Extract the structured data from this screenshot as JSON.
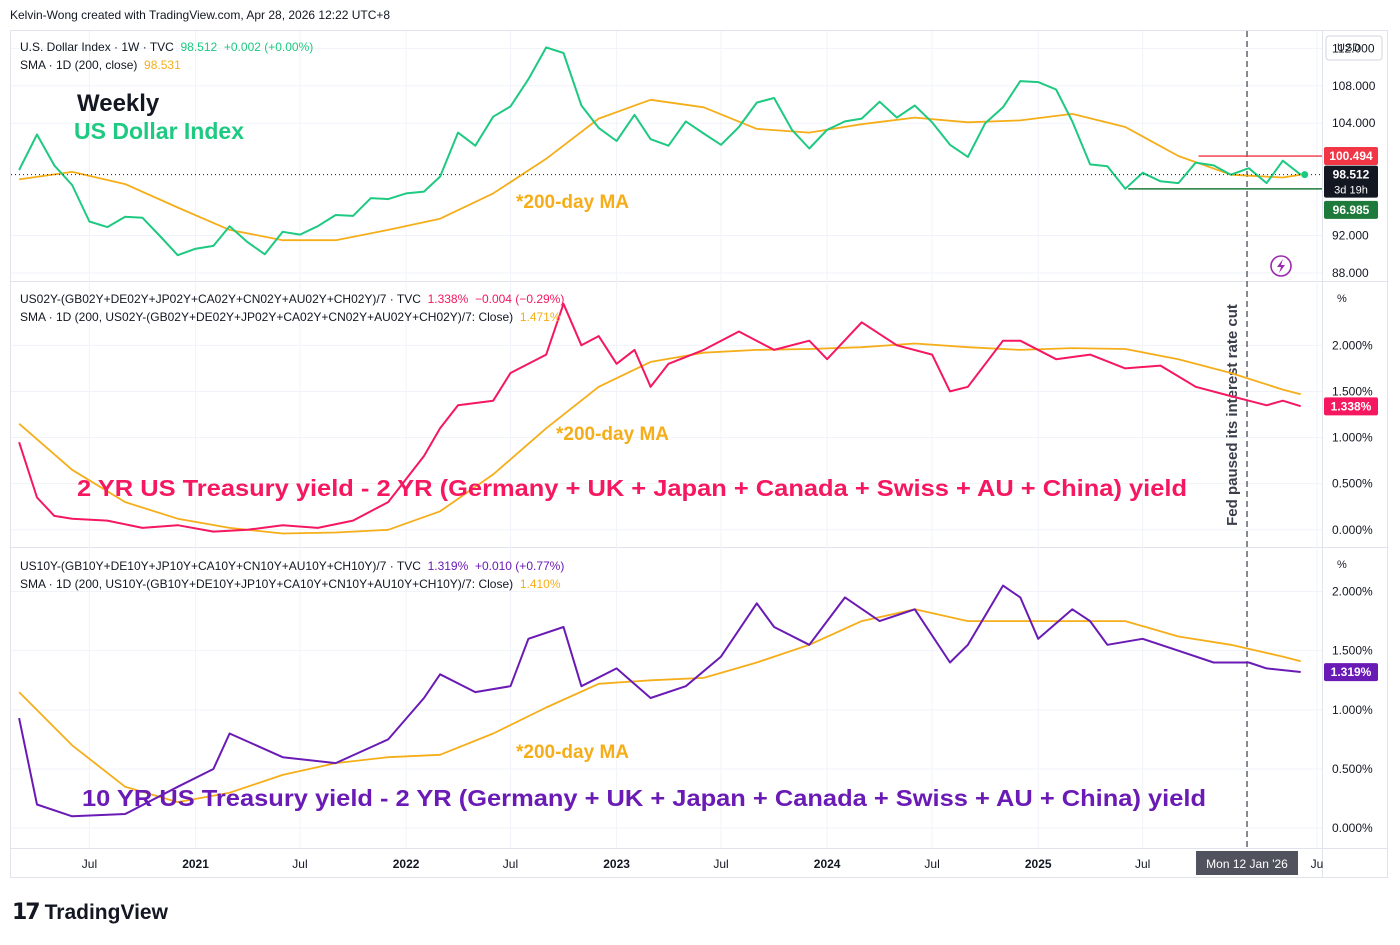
{
  "header": {
    "created_by": "Kelvin-Wong created with TradingView.com, Apr 28, 2026 12:22 UTC+8"
  },
  "footer": {
    "logo_text": "TradingView",
    "logo_mark": "17"
  },
  "colors": {
    "dxy": "#1ec981",
    "sma": "#f5ae19",
    "spread2y": "#f5175f",
    "spread10y": "#6a1ab5",
    "grid": "#f0f3fa",
    "axis_text": "#131722",
    "price_high": "#f23645",
    "price_low": "#1e7a3b"
  },
  "panels": {
    "dxy": {
      "legend_line1_name": "U.S. Dollar Index · 1W · TVC",
      "legend_line1_value": "98.512",
      "legend_line1_change": "+0.002 (+0.00%)",
      "legend_line2_name": "SMA · 1D (200, close)",
      "legend_line2_value": "98.531",
      "annotation_weekly": "Weekly",
      "annotation_title": "US Dollar Index",
      "annotation_ma": "*200-day MA",
      "axis_unit": "USD",
      "ticks": [
        "112.000",
        "108.000",
        "104.000",
        "92.000",
        "88.000"
      ],
      "badge_high": "100.494",
      "badge_last": "98.512",
      "badge_countdown": "3d 19h",
      "badge_low": "96.985"
    },
    "spread2y": {
      "legend_line1_name": "US02Y-(GB02Y+DE02Y+JP02Y+CA02Y+CN02Y+AU02Y+CH02Y)/7 · TVC",
      "legend_line1_value": "1.338%",
      "legend_line1_change": "−0.004 (−0.29%)",
      "legend_line2_name": "SMA · 1D (200, US02Y-(GB02Y+DE02Y+JP02Y+CA02Y+CN02Y+AU02Y+CH02Y)/7: Close)",
      "legend_line2_value": "1.471%",
      "annotation_title": "2 YR US Treasury yield - 2 YR (Germany + UK + Japan + Canada + Swiss + AU + China) yield",
      "annotation_ma": "*200-day MA",
      "axis_unit": "%",
      "ticks": [
        "2.000%",
        "1.500%",
        "1.000%",
        "0.500%",
        "0.000%"
      ],
      "badge_last": "1.338%"
    },
    "spread10y": {
      "legend_line1_name": "US10Y-(GB10Y+DE10Y+JP10Y+CA10Y+CN10Y+AU10Y+CH10Y)/7 · TVC",
      "legend_line1_value": "1.319%",
      "legend_line1_change": "+0.010 (+0.77%)",
      "legend_line2_name": "SMA · 1D (200, US10Y-(GB10Y+DE10Y+JP10Y+CA10Y+CN10Y+AU10Y+CH10Y)/7: Close)",
      "legend_line2_value": "1.410%",
      "annotation_title": "10 YR US Treasury yield - 2 YR (Germany + UK + Japan + Canada + Swiss + AU + China) yield",
      "annotation_ma": "*200-day MA",
      "axis_unit": "%",
      "ticks": [
        "2.000%",
        "1.500%",
        "1.000%",
        "0.500%",
        "0.000%"
      ],
      "badge_last": "1.319%"
    }
  },
  "vertical_annotation": "Fed paused its interest rate cut",
  "time_axis": {
    "labels": [
      "Jul",
      "2021",
      "Jul",
      "2022",
      "Jul",
      "2023",
      "Jul",
      "2024",
      "Jul",
      "2025",
      "Jul",
      "Ju"
    ],
    "crosshair_label": "Mon 12 Jan '26"
  },
  "chart_data": [
    {
      "type": "line",
      "title": "U.S. Dollar Index · 1W · TVC",
      "x_range": [
        "2020-04",
        "2026-04"
      ],
      "ylim": [
        88,
        113
      ],
      "series": [
        {
          "name": "U.S. Dollar Index · 1W · TVC",
          "x": [
            "2020-03",
            "2020-04",
            "2020-05",
            "2020-06",
            "2020-07",
            "2020-08",
            "2020-09",
            "2020-10",
            "2020-11",
            "2020-12",
            "2021-01",
            "2021-02",
            "2021-03",
            "2021-04",
            "2021-05",
            "2021-06",
            "2021-07",
            "2021-08",
            "2021-09",
            "2021-10",
            "2021-11",
            "2021-12",
            "2022-01",
            "2022-02",
            "2022-03",
            "2022-04",
            "2022-05",
            "2022-06",
            "2022-07",
            "2022-08",
            "2022-09",
            "2022-10",
            "2022-11",
            "2022-12",
            "2023-01",
            "2023-02",
            "2023-03",
            "2023-04",
            "2023-05",
            "2023-06",
            "2023-07",
            "2023-08",
            "2023-09",
            "2023-10",
            "2023-11",
            "2023-12",
            "2024-01",
            "2024-02",
            "2024-03",
            "2024-04",
            "2024-05",
            "2024-06",
            "2024-07",
            "2024-08",
            "2024-09",
            "2024-10",
            "2024-11",
            "2024-12",
            "2025-01",
            "2025-02",
            "2025-03",
            "2025-04",
            "2025-05",
            "2025-06",
            "2025-07",
            "2025-08",
            "2025-09",
            "2025-10",
            "2025-11",
            "2025-12",
            "2026-01",
            "2026-02",
            "2026-03",
            "2026-04"
          ],
          "y": [
            99.0,
            102.8,
            99.5,
            97.4,
            93.5,
            92.9,
            94.0,
            93.9,
            91.9,
            89.9,
            90.6,
            90.9,
            93.0,
            91.3,
            90.0,
            92.4,
            92.1,
            93.0,
            94.2,
            94.1,
            96.0,
            95.9,
            96.5,
            96.7,
            98.3,
            103.0,
            101.6,
            104.7,
            105.8,
            108.7,
            112.1,
            111.5,
            105.9,
            103.5,
            102.1,
            104.9,
            102.3,
            101.6,
            104.2,
            102.9,
            101.7,
            103.6,
            106.2,
            106.7,
            103.3,
            101.3,
            103.3,
            104.2,
            104.5,
            106.3,
            104.6,
            105.9,
            104.1,
            101.7,
            100.4,
            104.0,
            105.7,
            108.5,
            108.4,
            107.6,
            104.2,
            99.6,
            99.4,
            97.0,
            98.7,
            97.8,
            97.6,
            99.8,
            99.5,
            98.5,
            99.2,
            97.6,
            100.0,
            98.5
          ]
        },
        {
          "name": "SMA · 1D (200, close)",
          "x": [
            "2020-03",
            "2020-06",
            "2020-09",
            "2020-12",
            "2021-03",
            "2021-06",
            "2021-09",
            "2021-12",
            "2022-03",
            "2022-06",
            "2022-09",
            "2022-12",
            "2023-03",
            "2023-06",
            "2023-09",
            "2023-12",
            "2024-03",
            "2024-06",
            "2024-09",
            "2024-12",
            "2025-03",
            "2025-06",
            "2025-09",
            "2025-12",
            "2026-03",
            "2026-04"
          ],
          "y": [
            98.0,
            98.8,
            97.5,
            95.0,
            92.6,
            91.5,
            91.5,
            92.6,
            93.8,
            96.5,
            100.2,
            104.5,
            106.5,
            105.7,
            103.4,
            103.0,
            103.9,
            104.6,
            104.1,
            104.3,
            105.0,
            103.6,
            100.5,
            98.5,
            98.2,
            98.5
          ]
        }
      ]
    },
    {
      "type": "line",
      "title": "US02Y-(GB02Y+DE02Y+JP02Y+CA02Y+CN02Y+AU02Y+CH02Y)/7 · TVC",
      "x_range": [
        "2020-04",
        "2026-04"
      ],
      "ylim": [
        -0.1,
        2.6
      ],
      "series": [
        {
          "name": "US02Y-(GB02Y+DE02Y+JP02Y+CA02Y+CN02Y+AU02Y+CH02Y)/7 · TVC",
          "x": [
            "2020-03",
            "2020-04",
            "2020-05",
            "2020-06",
            "2020-08",
            "2020-10",
            "2020-12",
            "2021-02",
            "2021-04",
            "2021-06",
            "2021-08",
            "2021-10",
            "2021-12",
            "2022-02",
            "2022-03",
            "2022-04",
            "2022-06",
            "2022-07",
            "2022-09",
            "2022-10",
            "2022-11",
            "2022-12",
            "2023-01",
            "2023-02",
            "2023-03",
            "2023-04",
            "2023-06",
            "2023-08",
            "2023-10",
            "2023-12",
            "2024-01",
            "2024-03",
            "2024-05",
            "2024-07",
            "2024-08",
            "2024-09",
            "2024-11",
            "2024-12",
            "2025-02",
            "2025-04",
            "2025-06",
            "2025-08",
            "2025-10",
            "2025-12",
            "2026-01",
            "2026-02",
            "2026-03",
            "2026-04"
          ],
          "y": [
            0.95,
            0.35,
            0.15,
            0.12,
            0.1,
            0.02,
            0.05,
            -0.02,
            0.0,
            0.05,
            0.02,
            0.1,
            0.3,
            0.8,
            1.1,
            1.35,
            1.4,
            1.7,
            1.9,
            2.45,
            2.0,
            2.1,
            1.8,
            1.95,
            1.55,
            1.8,
            1.95,
            2.15,
            1.95,
            2.05,
            1.85,
            2.25,
            2.0,
            1.9,
            1.5,
            1.55,
            2.05,
            2.05,
            1.85,
            1.9,
            1.75,
            1.78,
            1.55,
            1.45,
            1.4,
            1.35,
            1.4,
            1.34
          ]
        },
        {
          "name": "SMA · 1D (200, US02Y-(GB02Y+DE02Y+JP02Y+CA02Y+CN02Y+AU02Y+CH02Y)/7: Close)",
          "x": [
            "2020-03",
            "2020-06",
            "2020-09",
            "2020-12",
            "2021-03",
            "2021-06",
            "2021-09",
            "2021-12",
            "2022-03",
            "2022-06",
            "2022-09",
            "2022-12",
            "2023-03",
            "2023-06",
            "2023-09",
            "2023-12",
            "2024-03",
            "2024-06",
            "2024-09",
            "2024-12",
            "2025-03",
            "2025-06",
            "2025-09",
            "2025-12",
            "2026-03",
            "2026-04"
          ],
          "y": [
            1.15,
            0.65,
            0.3,
            0.12,
            0.02,
            -0.04,
            -0.03,
            0.0,
            0.2,
            0.6,
            1.1,
            1.55,
            1.82,
            1.92,
            1.95,
            1.96,
            1.98,
            2.02,
            1.98,
            1.95,
            1.97,
            1.96,
            1.85,
            1.7,
            1.52,
            1.47
          ]
        }
      ]
    },
    {
      "type": "line",
      "title": "US10Y-(GB10Y+DE10Y+JP10Y+CA10Y+CN10Y+AU10Y+CH10Y)/7 · TVC",
      "x_range": [
        "2020-04",
        "2026-04"
      ],
      "ylim": [
        -0.1,
        2.3
      ],
      "series": [
        {
          "name": "US10Y-(GB10Y+DE10Y+JP10Y+CA10Y+CN10Y+AU10Y+CH10Y)/7 · TVC",
          "x": [
            "2020-03",
            "2020-04",
            "2020-06",
            "2020-09",
            "2020-12",
            "2021-02",
            "2021-03",
            "2021-06",
            "2021-09",
            "2021-12",
            "2022-02",
            "2022-03",
            "2022-05",
            "2022-07",
            "2022-08",
            "2022-10",
            "2022-11",
            "2023-01",
            "2023-03",
            "2023-05",
            "2023-07",
            "2023-09",
            "2023-10",
            "2023-12",
            "2024-02",
            "2024-04",
            "2024-06",
            "2024-08",
            "2024-09",
            "2024-11",
            "2024-12",
            "2025-01",
            "2025-03",
            "2025-04",
            "2025-05",
            "2025-07",
            "2025-09",
            "2025-11",
            "2026-01",
            "2026-02",
            "2026-04"
          ],
          "y": [
            0.93,
            0.2,
            0.1,
            0.12,
            0.35,
            0.5,
            0.8,
            0.6,
            0.55,
            0.75,
            1.1,
            1.3,
            1.15,
            1.2,
            1.6,
            1.7,
            1.2,
            1.35,
            1.1,
            1.2,
            1.45,
            1.9,
            1.7,
            1.55,
            1.95,
            1.75,
            1.85,
            1.4,
            1.55,
            2.05,
            1.95,
            1.6,
            1.85,
            1.75,
            1.55,
            1.6,
            1.5,
            1.4,
            1.4,
            1.35,
            1.32
          ]
        },
        {
          "name": "SMA · 1D (200, US10Y-(GB10Y+DE10Y+JP10Y+CA10Y+CN10Y+AU10Y+CH10Y)/7: Close)",
          "x": [
            "2020-03",
            "2020-06",
            "2020-09",
            "2020-12",
            "2021-03",
            "2021-06",
            "2021-09",
            "2021-12",
            "2022-03",
            "2022-06",
            "2022-09",
            "2022-12",
            "2023-03",
            "2023-06",
            "2023-09",
            "2023-12",
            "2024-03",
            "2024-06",
            "2024-09",
            "2024-12",
            "2025-03",
            "2025-06",
            "2025-09",
            "2025-12",
            "2026-03",
            "2026-04"
          ],
          "y": [
            1.15,
            0.7,
            0.35,
            0.22,
            0.3,
            0.45,
            0.55,
            0.6,
            0.62,
            0.8,
            1.02,
            1.22,
            1.25,
            1.27,
            1.4,
            1.55,
            1.75,
            1.85,
            1.75,
            1.75,
            1.75,
            1.75,
            1.62,
            1.55,
            1.45,
            1.41
          ]
        }
      ]
    }
  ]
}
